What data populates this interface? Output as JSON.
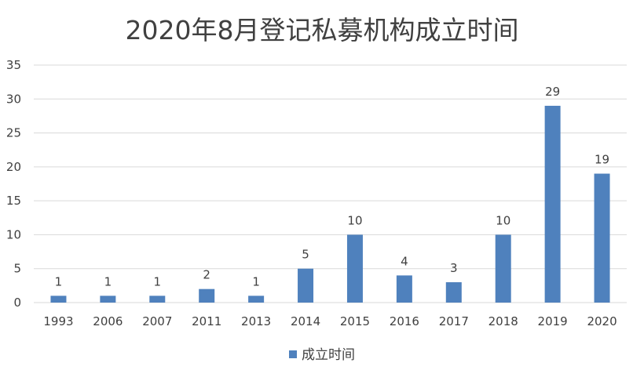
{
  "chart_data": {
    "type": "bar",
    "title": "2020年8月登记私募机构成立时间",
    "categories": [
      "1993",
      "2006",
      "2007",
      "2011",
      "2013",
      "2014",
      "2015",
      "2016",
      "2017",
      "2018",
      "2019",
      "2020"
    ],
    "series": [
      {
        "name": "成立时间",
        "values": [
          1,
          1,
          1,
          2,
          1,
          5,
          10,
          4,
          3,
          10,
          29,
          19
        ],
        "color": "#4f81bd"
      }
    ],
    "ylim": [
      0,
      35
    ],
    "yticks": [
      0,
      5,
      10,
      15,
      20,
      25,
      30,
      35
    ],
    "grid": true,
    "legend": "bottom",
    "data_labels": true
  }
}
